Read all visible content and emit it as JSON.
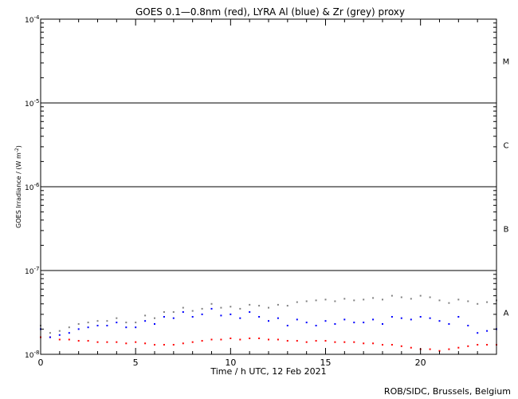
{
  "chart_data": {
    "type": "scatter",
    "title": "GOES 0.1—0.8nm (red), LYRA Al (blue) & Zr (grey) proxy",
    "xlabel": "Time / h UTC, 12 Feb 2021",
    "ylabel": "GOES Irradiance / (W m",
    "ylabel_sup": "-2",
    "ylabel_close": ")",
    "scale_y": "log",
    "xlim": [
      0,
      24
    ],
    "ylim": [
      1e-08,
      0.0001
    ],
    "x_ticks": [
      {
        "value": 0,
        "label": "0"
      },
      {
        "value": 5,
        "label": "5"
      },
      {
        "value": 10,
        "label": "10"
      },
      {
        "value": 15,
        "label": "15"
      },
      {
        "value": 20,
        "label": "20"
      }
    ],
    "y_ticks": [
      {
        "value": 0.0001,
        "base": "10",
        "exp": "-4"
      },
      {
        "value": 1e-05,
        "base": "10",
        "exp": "-5"
      },
      {
        "value": 1e-06,
        "base": "10",
        "exp": "-6"
      },
      {
        "value": 1e-07,
        "base": "10",
        "exp": "-7"
      },
      {
        "value": 1e-08,
        "base": "10",
        "exp": "-8"
      }
    ],
    "flare_levels": [
      1e-07,
      1e-06,
      1e-05
    ],
    "flare_classes": [
      {
        "label": "M",
        "y": 3.16e-05
      },
      {
        "label": "C",
        "y": 3.16e-06
      },
      {
        "label": "B",
        "y": 3.16e-07
      },
      {
        "label": "A",
        "y": 3.16e-08
      }
    ],
    "series": [
      {
        "name": "GOES 0.1—0.8nm",
        "color": "#ff0000",
        "x": [
          0,
          0.5,
          1,
          1.5,
          2,
          2.5,
          3,
          3.5,
          4,
          4.5,
          5,
          5.5,
          6,
          6.5,
          7,
          7.5,
          8,
          8.5,
          9,
          9.5,
          10,
          10.5,
          11,
          11.5,
          12,
          12.5,
          13,
          13.5,
          14,
          14.5,
          15,
          15.5,
          16,
          16.5,
          17,
          17.5,
          18,
          18.5,
          19,
          19.5,
          20,
          20.5,
          21,
          21.5,
          22,
          22.5,
          23,
          23.5,
          24
        ],
        "y": [
          1.6e-08,
          1.6e-08,
          1.5e-08,
          1.5e-08,
          1.45e-08,
          1.45e-08,
          1.4e-08,
          1.4e-08,
          1.4e-08,
          1.35e-08,
          1.4e-08,
          1.35e-08,
          1.3e-08,
          1.3e-08,
          1.3e-08,
          1.35e-08,
          1.4e-08,
          1.45e-08,
          1.5e-08,
          1.5e-08,
          1.55e-08,
          1.5e-08,
          1.55e-08,
          1.55e-08,
          1.5e-08,
          1.5e-08,
          1.45e-08,
          1.45e-08,
          1.4e-08,
          1.45e-08,
          1.45e-08,
          1.4e-08,
          1.4e-08,
          1.4e-08,
          1.35e-08,
          1.35e-08,
          1.3e-08,
          1.3e-08,
          1.25e-08,
          1.2e-08,
          1.15e-08,
          1.15e-08,
          1.1e-08,
          1.15e-08,
          1.2e-08,
          1.25e-08,
          1.3e-08,
          1.3e-08,
          1.3e-08
        ]
      },
      {
        "name": "LYRA Al proxy",
        "color": "#0000ff",
        "x": [
          0,
          0.5,
          1,
          1.5,
          2,
          2.5,
          3,
          3.5,
          4,
          4.5,
          5,
          5.5,
          6,
          6.5,
          7,
          7.5,
          8,
          8.5,
          9,
          9.5,
          10,
          10.5,
          11,
          11.5,
          12,
          12.5,
          13,
          13.5,
          14,
          14.5,
          15,
          15.5,
          16,
          16.5,
          17,
          17.5,
          18,
          18.5,
          19,
          19.5,
          20,
          20.5,
          21,
          21.5,
          22,
          22.5,
          23,
          23.5,
          24
        ],
        "y": [
          2e-08,
          1.6e-08,
          1.7e-08,
          1.8e-08,
          2e-08,
          2.1e-08,
          2.2e-08,
          2.2e-08,
          2.4e-08,
          2.1e-08,
          2.1e-08,
          2.5e-08,
          2.3e-08,
          2.8e-08,
          2.7e-08,
          3.2e-08,
          2.8e-08,
          3e-08,
          3.5e-08,
          2.9e-08,
          3e-08,
          2.7e-08,
          3.2e-08,
          2.8e-08,
          2.5e-08,
          2.7e-08,
          2.2e-08,
          2.6e-08,
          2.4e-08,
          2.2e-08,
          2.5e-08,
          2.3e-08,
          2.6e-08,
          2.4e-08,
          2.4e-08,
          2.6e-08,
          2.3e-08,
          2.8e-08,
          2.7e-08,
          2.6e-08,
          2.8e-08,
          2.7e-08,
          2.5e-08,
          2.3e-08,
          2.8e-08,
          2.2e-08,
          1.8e-08,
          1.9e-08,
          2e-08
        ]
      },
      {
        "name": "LYRA Zr proxy",
        "color": "#808080",
        "x": [
          0,
          0.5,
          1,
          1.5,
          2,
          2.5,
          3,
          3.5,
          4,
          4.5,
          5,
          5.5,
          6,
          6.5,
          7,
          7.5,
          8,
          8.5,
          9,
          9.5,
          10,
          10.5,
          11,
          11.5,
          12,
          12.5,
          13,
          13.5,
          14,
          14.5,
          15,
          15.5,
          16,
          16.5,
          17,
          17.5,
          18,
          18.5,
          19,
          19.5,
          20,
          20.5,
          21,
          21.5,
          22,
          22.5,
          23,
          23.5,
          24
        ],
        "y": [
          2.2e-08,
          1.8e-08,
          1.9e-08,
          2.1e-08,
          2.3e-08,
          2.4e-08,
          2.5e-08,
          2.5e-08,
          2.7e-08,
          2.4e-08,
          2.4e-08,
          2.9e-08,
          2.7e-08,
          3.2e-08,
          3.2e-08,
          3.6e-08,
          3.3e-08,
          3.5e-08,
          4e-08,
          3.6e-08,
          3.7e-08,
          3.5e-08,
          3.9e-08,
          3.8e-08,
          3.6e-08,
          3.9e-08,
          3.8e-08,
          4.2e-08,
          4.3e-08,
          4.4e-08,
          4.5e-08,
          4.3e-08,
          4.6e-08,
          4.4e-08,
          4.5e-08,
          4.7e-08,
          4.5e-08,
          5e-08,
          4.8e-08,
          4.6e-08,
          5e-08,
          4.8e-08,
          4.4e-08,
          4.1e-08,
          4.5e-08,
          4.3e-08,
          4e-08,
          4.2e-08,
          4.4e-08
        ]
      }
    ]
  },
  "credit": "ROB/SIDC, Brussels, Belgium"
}
